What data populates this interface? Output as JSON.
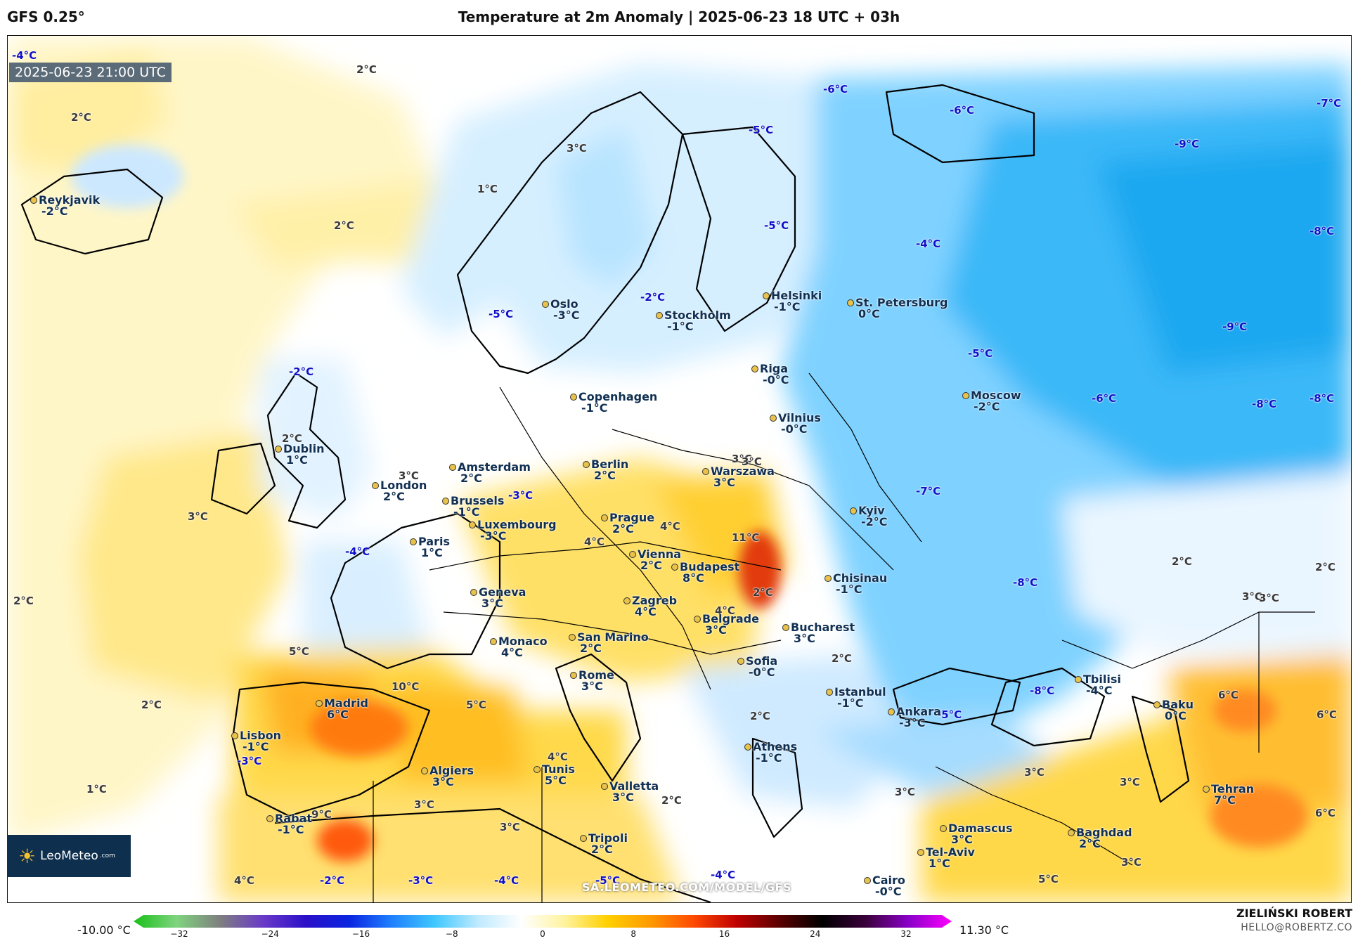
{
  "header": {
    "model": "GFS 0.25°",
    "title": "Temperature at 2m Anomaly | 2025-06-23 18 UTC + 03h"
  },
  "map": {
    "valid_time": "2025-06-23 21:00 UTC",
    "watermark": "SA.LEOMETEO.COM/MODEL/GFS",
    "logo": "LeoMeteo",
    "logo_suffix": ".com",
    "cities": [
      {
        "name": "Reykjavik",
        "value": "-2°C"
      },
      {
        "name": "Oslo",
        "value": "-3°C"
      },
      {
        "name": "Stockholm",
        "value": "-1°C"
      },
      {
        "name": "Helsinki",
        "value": "-1°C"
      },
      {
        "name": "St. Petersburg",
        "value": "0°C"
      },
      {
        "name": "Riga",
        "value": "-0°C"
      },
      {
        "name": "Copenhagen",
        "value": "-1°C"
      },
      {
        "name": "Moscow",
        "value": "-2°C"
      },
      {
        "name": "Vilnius",
        "value": "-0°C"
      },
      {
        "name": "Dublin",
        "value": "1°C"
      },
      {
        "name": "Amsterdam",
        "value": "2°C"
      },
      {
        "name": "Berlin",
        "value": "2°C"
      },
      {
        "name": "Warszawa",
        "value": "3°C"
      },
      {
        "name": "London",
        "value": "2°C"
      },
      {
        "name": "Brussels",
        "value": "-1°C"
      },
      {
        "name": "Kyiv",
        "value": "-2°C"
      },
      {
        "name": "Luxembourg",
        "value": "-3°C"
      },
      {
        "name": "Prague",
        "value": "2°C"
      },
      {
        "name": "Paris",
        "value": "1°C"
      },
      {
        "name": "Vienna",
        "value": "2°C"
      },
      {
        "name": "Budapest",
        "value": "8°C"
      },
      {
        "name": "Chisinau",
        "value": "-1°C"
      },
      {
        "name": "Geneva",
        "value": "3°C"
      },
      {
        "name": "Zagreb",
        "value": "4°C"
      },
      {
        "name": "Belgrade",
        "value": "3°C"
      },
      {
        "name": "Bucharest",
        "value": "3°C"
      },
      {
        "name": "San Marino",
        "value": "2°C"
      },
      {
        "name": "Monaco",
        "value": "4°C"
      },
      {
        "name": "Sofia",
        "value": "-0°C"
      },
      {
        "name": "Rome",
        "value": "3°C"
      },
      {
        "name": "Tbilisi",
        "value": "-4°C"
      },
      {
        "name": "Istanbul",
        "value": "-1°C"
      },
      {
        "name": "Madrid",
        "value": "6°C"
      },
      {
        "name": "Ankara",
        "value": "-3°C"
      },
      {
        "name": "Baku",
        "value": "0°C"
      },
      {
        "name": "Lisbon",
        "value": "-1°C"
      },
      {
        "name": "Athens",
        "value": "-1°C"
      },
      {
        "name": "Algiers",
        "value": "3°C"
      },
      {
        "name": "Tunis",
        "value": "5°C"
      },
      {
        "name": "Valletta",
        "value": "3°C"
      },
      {
        "name": "Tehran",
        "value": "7°C"
      },
      {
        "name": "Rabat",
        "value": "-1°C"
      },
      {
        "name": "Damascus",
        "value": "3°C"
      },
      {
        "name": "Baghdad",
        "value": "2°C"
      },
      {
        "name": "Tripoli",
        "value": "2°C"
      },
      {
        "name": "Tel-Aviv",
        "value": "1°C"
      },
      {
        "name": "Cairo",
        "value": "-0°C"
      }
    ],
    "anomaly_labels": [
      "-4°C",
      "2°C",
      "2°C",
      "1°C",
      "2°C",
      "3°C",
      "-6°C",
      "-6°C",
      "-7°C",
      "-5°C",
      "-9°C",
      "-5°C",
      "-4°C",
      "-8°C",
      "-5°C",
      "-2°C",
      "-2°C",
      "-9°C",
      "-5°C",
      "-6°C",
      "-8°C",
      "-8°C",
      "2°C",
      "3°C",
      "-3°C",
      "3°C",
      "3°C",
      "-7°C",
      "4°C",
      "4°C",
      "11°C",
      "-4°C",
      "2°C",
      "2°C",
      "3°C",
      "-8°C",
      "2°C",
      "4°C",
      "5°C",
      "10°C",
      "5°C",
      "2°C",
      "2°C",
      "-8°C",
      "-5°C",
      "6°C",
      "6°C",
      "-3°C",
      "1°C",
      "4°C",
      "2°C",
      "3°C",
      "3°C",
      "3°C",
      "9°C",
      "3°C",
      "3°C",
      "6°C",
      "3°C",
      "4°C",
      "-2°C",
      "-3°C",
      "-4°C",
      "-5°C",
      "-4°C",
      "5°C",
      "2°C",
      "3°C",
      "2°C",
      "3°C"
    ]
  },
  "colorbar": {
    "min_label": "-10.00 °C",
    "max_label": "11.30 °C",
    "ticks": [
      "−32",
      "−24",
      "−16",
      "−8",
      "0",
      "8",
      "16",
      "24",
      "32"
    ],
    "stops": [
      "#18c018",
      "#7fd47f",
      "#7f7f7f",
      "#6a3ac8",
      "#2a10c8",
      "#0a24e0",
      "#2080ff",
      "#40c8ff",
      "#bfeaff",
      "#ffffff",
      "#fff3a0",
      "#ffd000",
      "#ff9a00",
      "#ff4a00",
      "#c00000",
      "#5a0000",
      "#000000",
      "#3a003a",
      "#8a00c8",
      "#ff00ff"
    ]
  },
  "credits": {
    "author": "ZIELIŃSKI ROBERT",
    "email": "HELLO@ROBERTZ.CO"
  }
}
